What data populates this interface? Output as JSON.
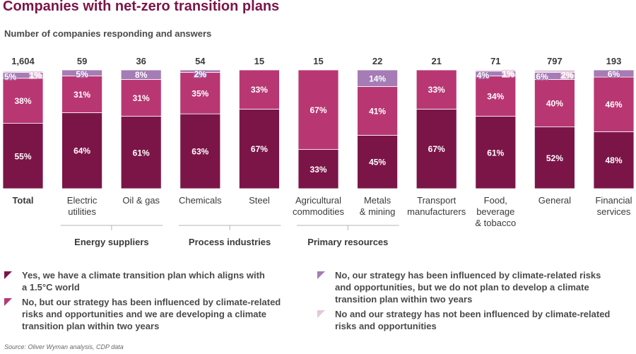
{
  "title": "Companies with net-zero transition plans",
  "subtitle": "Number of companies responding and answers",
  "source": "Source: Oliver Wyman analysis, CDP data",
  "colors": {
    "aligned": "#7b1548",
    "developing": "#b83773",
    "influenced_no_plan": "#a57cb5",
    "not_influenced": "#e6c7dc"
  },
  "chart_data": {
    "type": "bar",
    "stacked": true,
    "percent_scale": true,
    "categories": [
      {
        "label": "Total",
        "lines": [
          "Total"
        ],
        "total": "1,604",
        "bold": true
      },
      {
        "label": "Electric utilities",
        "lines": [
          "Electric",
          "utilities"
        ],
        "total": "59"
      },
      {
        "label": "Oil & gas",
        "lines": [
          "Oil & gas"
        ],
        "total": "36"
      },
      {
        "label": "Chemicals",
        "lines": [
          "Chemicals"
        ],
        "total": "54"
      },
      {
        "label": "Steel",
        "lines": [
          "Steel"
        ],
        "total": "15"
      },
      {
        "label": "Agricultural commodities",
        "lines": [
          "Agricultural",
          "commodities"
        ],
        "total": "15"
      },
      {
        "label": "Metals & mining",
        "lines": [
          "Metals",
          "& mining"
        ],
        "total": "22"
      },
      {
        "label": "Transport manufacturers",
        "lines": [
          "Transport",
          "manufacturers"
        ],
        "total": "21"
      },
      {
        "label": "Food, beverage & tobacco",
        "lines": [
          "Food,",
          "beverage",
          "& tobacco"
        ],
        "total": "71"
      },
      {
        "label": "General",
        "lines": [
          "General"
        ],
        "total": "797"
      },
      {
        "label": "Financial services",
        "lines": [
          "Financial",
          "services"
        ],
        "total": "193"
      }
    ],
    "series": [
      {
        "name": "Yes, we have a climate transition plan which aligns with a 1.5°C world",
        "color": "#7b1548",
        "values": [
          55,
          64,
          61,
          63,
          67,
          33,
          45,
          67,
          61,
          52,
          48
        ],
        "labels": [
          "55%",
          "64%",
          "61%",
          "63%",
          "67%",
          "33%",
          "45%",
          "67%",
          "61%",
          "52%",
          "48%"
        ]
      },
      {
        "name": "No, but our strategy has been influenced by climate-related risks and opportunities and we are developing a climate transition plan within two years",
        "color": "#b83773",
        "values": [
          38,
          31,
          31,
          35,
          33,
          67,
          41,
          33,
          34,
          40,
          46
        ],
        "labels": [
          "38%",
          "31%",
          "31%",
          "35%",
          "33%",
          "67%",
          "41%",
          "33%",
          "34%",
          "40%",
          "46%"
        ]
      },
      {
        "name": "No, our strategy has been influenced by climate-related risks and opportunities, but we do not plan to develop a climate transition plan within two years",
        "color": "#a57cb5",
        "values": [
          5,
          5,
          8,
          2,
          0,
          0,
          14,
          0,
          4,
          6,
          6
        ],
        "labels": [
          "5%",
          "5%",
          "8%",
          "2%",
          "",
          "",
          "14%",
          "",
          "4%",
          "6%",
          "6%"
        ]
      },
      {
        "name": "No and our strategy has not been influenced by climate-related risks and opportunities",
        "color": "#e6c7dc",
        "values": [
          1,
          0,
          0,
          0,
          0,
          0,
          0,
          0,
          1,
          2,
          0
        ],
        "labels": [
          "1%",
          "",
          "",
          "",
          "",
          "",
          "",
          "",
          "1%",
          "2%",
          ""
        ]
      }
    ],
    "groups": [
      {
        "label": "Energy suppliers",
        "from": 1,
        "to": 2
      },
      {
        "label": "Process industries",
        "from": 3,
        "to": 4
      },
      {
        "label": "Primary resources",
        "from": 5,
        "to": 6
      }
    ],
    "ylim": [
      0,
      100
    ],
    "xlabel": "",
    "ylabel": ""
  },
  "legend": [
    {
      "lines": [
        "Yes, we have a climate transition plan which aligns with",
        "a 1.5°C world"
      ],
      "color": "#7b1548"
    },
    {
      "lines": [
        "No, but our strategy has been influenced by climate-related",
        "risks and opportunities and we are developing a climate",
        "transition plan within two years"
      ],
      "color": "#b83773"
    },
    {
      "lines": [
        "No, our strategy has been influenced by climate-related risks",
        "and opportunities, but we do not plan to develop a climate",
        "transition plan within two years"
      ],
      "color": "#a57cb5"
    },
    {
      "lines": [
        "No and our strategy has not been influenced by climate-related",
        "risks and opportunities"
      ],
      "color": "#e6c7dc"
    }
  ]
}
